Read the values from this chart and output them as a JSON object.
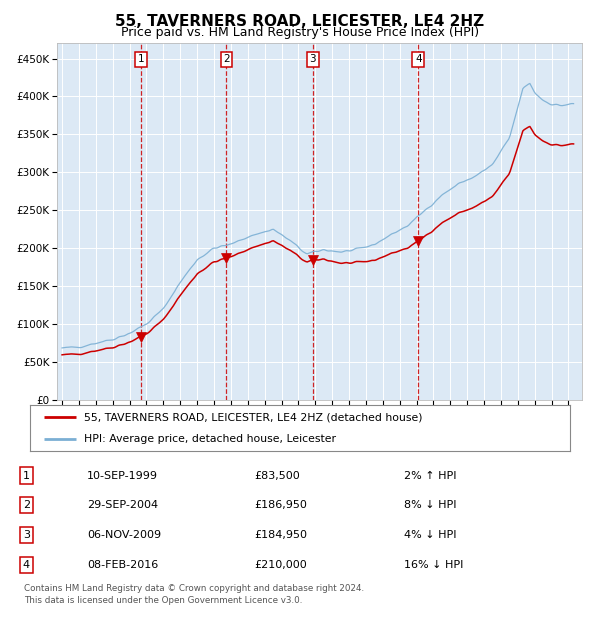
{
  "title": "55, TAVERNERS ROAD, LEICESTER, LE4 2HZ",
  "subtitle": "Price paid vs. HM Land Registry's House Price Index (HPI)",
  "title_fontsize": 11,
  "subtitle_fontsize": 9,
  "background_color": "#ffffff",
  "plot_bg_color": "#dce9f5",
  "grid_color": "#ffffff",
  "ylabel_ticks": [
    "£0",
    "£50K",
    "£100K",
    "£150K",
    "£200K",
    "£250K",
    "£300K",
    "£350K",
    "£400K",
    "£450K"
  ],
  "ytick_values": [
    0,
    50000,
    100000,
    150000,
    200000,
    250000,
    300000,
    350000,
    400000,
    450000
  ],
  "ylim": [
    0,
    470000
  ],
  "xlim_start": 1994.7,
  "xlim_end": 2025.8,
  "sale_dates": [
    1999.69,
    2004.74,
    2009.85,
    2016.1
  ],
  "sale_prices": [
    83500,
    186950,
    184950,
    210000
  ],
  "sale_labels": [
    "1",
    "2",
    "3",
    "4"
  ],
  "sale_color": "#cc0000",
  "hpi_color": "#7bafd4",
  "dashed_line_color": "#cc0000",
  "legend_entries": [
    "55, TAVERNERS ROAD, LEICESTER, LE4 2HZ (detached house)",
    "HPI: Average price, detached house, Leicester"
  ],
  "table_data": [
    [
      "1",
      "10-SEP-1999",
      "£83,500",
      "2% ↑ HPI"
    ],
    [
      "2",
      "29-SEP-2004",
      "£186,950",
      "8% ↓ HPI"
    ],
    [
      "3",
      "06-NOV-2009",
      "£184,950",
      "4% ↓ HPI"
    ],
    [
      "4",
      "08-FEB-2016",
      "£210,000",
      "16% ↓ HPI"
    ]
  ],
  "footnote": "Contains HM Land Registry data © Crown copyright and database right 2024.\nThis data is licensed under the Open Government Licence v3.0."
}
